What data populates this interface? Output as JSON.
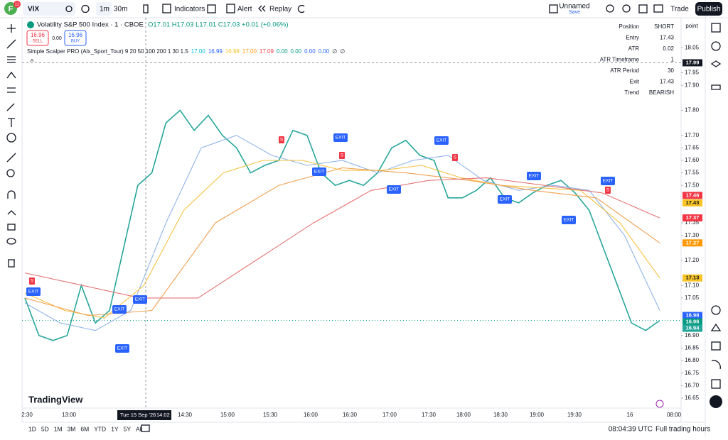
{
  "toolbar": {
    "avatar_badge": "11",
    "symbol": "VIX",
    "interval": "1m",
    "range": "30m",
    "indicators": "Indicators",
    "alert": "Alert",
    "replay": "Replay",
    "layout_name": "Unnamed",
    "save": "Save",
    "trade": "Trade",
    "publish": "Publish"
  },
  "legend": {
    "title": "Volatility S&P 500 Index · 1 · CBOE",
    "ohlc": "O17.01 H17.03 L17.01 C17.03 +0.01 (+0.06%)",
    "sell_price": "16.96",
    "sell": "SELL",
    "spread": "0.00",
    "buy_price": "16.96",
    "buy": "BUY",
    "indicator": "Simple Scalper PRO (Alx_Sport_Tour) 9 20 50 100 200 1 30 1.5",
    "indicator_values": [
      "17.00",
      "16.99",
      "16.98",
      "17.00",
      "17.09",
      "0.00",
      "0.00",
      "0.00",
      "0.00",
      "∅",
      "∅"
    ],
    "indicator_colors": [
      "#00bcd4",
      "#2962ff",
      "#f7c325",
      "#ff9800",
      "#f23645",
      "#089981",
      "#089981",
      "#2962ff",
      "#2962ff",
      "#131722",
      "#131722"
    ]
  },
  "info_table": {
    "rows": [
      [
        "Position",
        "SHORT"
      ],
      [
        "Entry",
        "17.43"
      ],
      [
        "ATR",
        "0.02"
      ],
      [
        "ATR Timeframe",
        "1"
      ],
      [
        "ATR Period",
        "30"
      ],
      [
        "Exit",
        "17.43"
      ],
      [
        "Trend",
        "BEARISH"
      ]
    ]
  },
  "axis_caption": "point",
  "brand": "TradingView",
  "chart_data": {
    "type": "line",
    "series": [
      {
        "name": "Price",
        "color": "#26a69a",
        "values": [
          17.05,
          16.9,
          16.88,
          16.9,
          17.1,
          16.95,
          17.0,
          17.25,
          17.5,
          17.55,
          17.75,
          17.8,
          17.72,
          17.78,
          17.7,
          17.65,
          17.55,
          17.58,
          17.6,
          17.72,
          17.7,
          17.55,
          17.5,
          17.52,
          17.5,
          17.55,
          17.65,
          17.68,
          17.62,
          17.6,
          17.45,
          17.45,
          17.48,
          17.53,
          17.45,
          17.43,
          17.47,
          17.5,
          17.52,
          17.47,
          17.4,
          17.25,
          17.1,
          16.95,
          16.92,
          16.96
        ]
      },
      {
        "name": "Fast MA",
        "color": "#8fb3e8",
        "values": [
          17.03,
          16.95,
          16.92,
          17.0,
          17.35,
          17.65,
          17.7,
          17.62,
          17.58,
          17.6,
          17.55,
          17.6,
          17.62,
          17.52,
          17.48,
          17.5,
          17.48,
          17.3,
          17.0
        ]
      },
      {
        "name": "Mid MA",
        "color": "#f5c242",
        "values": [
          17.07,
          17.0,
          16.97,
          17.1,
          17.4,
          17.55,
          17.6,
          17.6,
          17.56,
          17.56,
          17.58,
          17.53,
          17.5,
          17.49,
          17.48,
          17.35,
          17.13
        ]
      },
      {
        "name": "Slow MA",
        "color": "#f0a050",
        "values": [
          17.05,
          16.98,
          17.0,
          17.35,
          17.5,
          17.57,
          17.55,
          17.52,
          17.48,
          17.45,
          17.27
        ]
      },
      {
        "name": "Long MA",
        "color": "#e57373",
        "values": [
          17.15,
          17.1,
          17.05,
          17.05,
          17.2,
          17.35,
          17.48,
          17.52,
          17.53,
          17.5,
          17.47,
          17.37
        ]
      }
    ],
    "ylim": [
      16.61,
      18.17
    ],
    "yticks": [
      18.05,
      17.95,
      {
        "value": 17.9,
        "label": "17.90"
      },
      {
        "value": 17.8,
        "label": "17.80"
      },
      {
        "value": 17.7,
        "label": "17.70"
      },
      17.65,
      {
        "value": 17.6,
        "label": "17.60"
      },
      17.55,
      {
        "value": 17.5,
        "label": "17.50"
      },
      17.35,
      {
        "value": 17.3,
        "label": "17.30"
      },
      {
        "value": 17.2,
        "label": "17.20"
      },
      {
        "value": 17.1,
        "label": "17.10"
      },
      17.05,
      {
        "value": 16.9,
        "label": "16.90"
      },
      16.85,
      {
        "value": 16.8,
        "label": "16.80"
      },
      16.75,
      {
        "value": 16.7,
        "label": "16.70"
      },
      16.65
    ],
    "x_labels": [
      "2:30",
      "13:00",
      "14:30",
      "15:00",
      "15:30",
      "16:00",
      "16:30",
      "17:00",
      "17:30",
      "18:00",
      "18:30",
      "19:00",
      "19:30",
      "16",
      "08:00"
    ],
    "crosshair_date": "Tue 15 Sep '26",
    "crosshair_time": "14:02",
    "price_tags": [
      {
        "value": 17.99,
        "color": "#131722"
      },
      {
        "value": 17.46,
        "color": "#f23645"
      },
      {
        "value": 17.43,
        "color": "#f7c325"
      },
      {
        "value": 17.37,
        "color": "#f23645"
      },
      {
        "value": 17.27,
        "color": "#ff9800"
      },
      {
        "value": 17.13,
        "color": "#f7c325"
      },
      {
        "value": 16.98,
        "color": "#2962ff"
      },
      {
        "value": 16.96,
        "color": "#089981"
      },
      {
        "value": 16.94,
        "color": "#26a69a"
      }
    ],
    "countdown": "00:21",
    "exit_markers": [
      "EXIT",
      "EXIT",
      "EXIT",
      "EXIT",
      "EXIT",
      "EXIT",
      "EXIT",
      "EXIT",
      "EXIT",
      "EXIT",
      "EXIT",
      "EXIT"
    ],
    "sell_markers": [
      "S",
      "S",
      "S",
      "S",
      "S"
    ],
    "grid": false
  },
  "bottom_bar": {
    "ranges": [
      "1D",
      "5D",
      "1M",
      "3M",
      "6M",
      "YTD",
      "1Y",
      "5Y",
      "All"
    ],
    "clock": "08:04:39 UTC",
    "session": "Full trading hours"
  }
}
